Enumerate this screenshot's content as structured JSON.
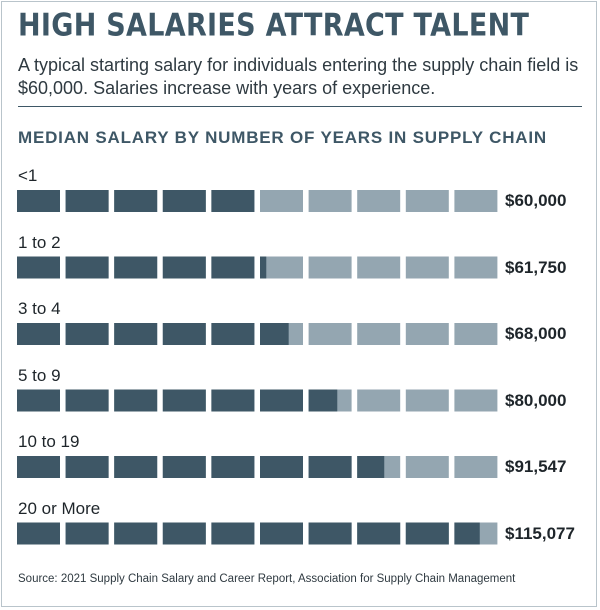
{
  "header": {
    "title": "HIGH SALARIES ATTRACT TALENT",
    "subtitle": "A typical starting salary for individuals entering the supply chain field is $60,000. Salaries increase with years of experience."
  },
  "chart_data": {
    "type": "bar",
    "title": "MEDIAN SALARY BY NUMBER OF YEARS IN SUPPLY CHAIN",
    "categories": [
      "<1",
      "1 to 2",
      "3 to 4",
      "5 to 9",
      "10 to 19",
      "20 or More"
    ],
    "values": [
      60000,
      61750,
      68000,
      80000,
      91547,
      115077
    ],
    "value_labels": [
      "$60,000",
      "$61,750",
      "$68,000",
      "$80,000",
      "$91,547",
      "$115,077"
    ],
    "xlim": [
      0,
      120000
    ],
    "segments": 10,
    "colors": {
      "filled": "#3e5766",
      "empty": "#94a6b1"
    }
  },
  "footer": {
    "source": "Source: 2021 Supply Chain Salary and Career Report, Association for Supply Chain Management"
  }
}
